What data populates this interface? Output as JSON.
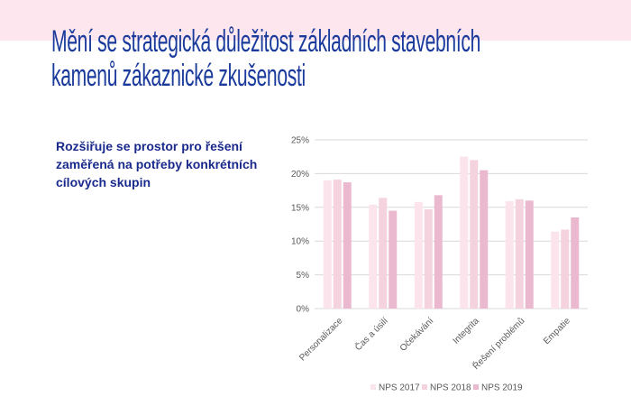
{
  "header": {
    "title_line1": "Mění se strategická důležitost základních stavebních",
    "title_line2": "kamenů zákaznické zkušenosti"
  },
  "text": {
    "subtitle": "Rozšiřuje se prostor pro řešení zaměřená na potřeby konkrétních cílových skupin"
  },
  "colors": {
    "band": "#fde6ee",
    "title": "#1a3a9c",
    "series": [
      "#fce4ec",
      "#f4d3df",
      "#eab8cf"
    ]
  },
  "chart_data": {
    "type": "bar",
    "categories": [
      "Personalizace",
      "Čas a úsilí",
      "Očekávání",
      "Integrita",
      "Řešení problémů",
      "Empatie"
    ],
    "series": [
      {
        "name": "NPS 2017",
        "values": [
          19.0,
          15.4,
          15.8,
          22.5,
          15.9,
          11.4
        ]
      },
      {
        "name": "NPS 2018",
        "values": [
          19.1,
          16.4,
          14.7,
          22.0,
          16.2,
          11.7
        ]
      },
      {
        "name": "NPS 2019",
        "values": [
          18.7,
          14.5,
          16.8,
          20.5,
          16.0,
          13.5
        ]
      }
    ],
    "yticks": [
      "0%",
      "5%",
      "10%",
      "15%",
      "20%",
      "25%"
    ],
    "ylim": [
      0,
      25
    ],
    "yunit": "%",
    "grid": true,
    "legend": "bottom"
  }
}
